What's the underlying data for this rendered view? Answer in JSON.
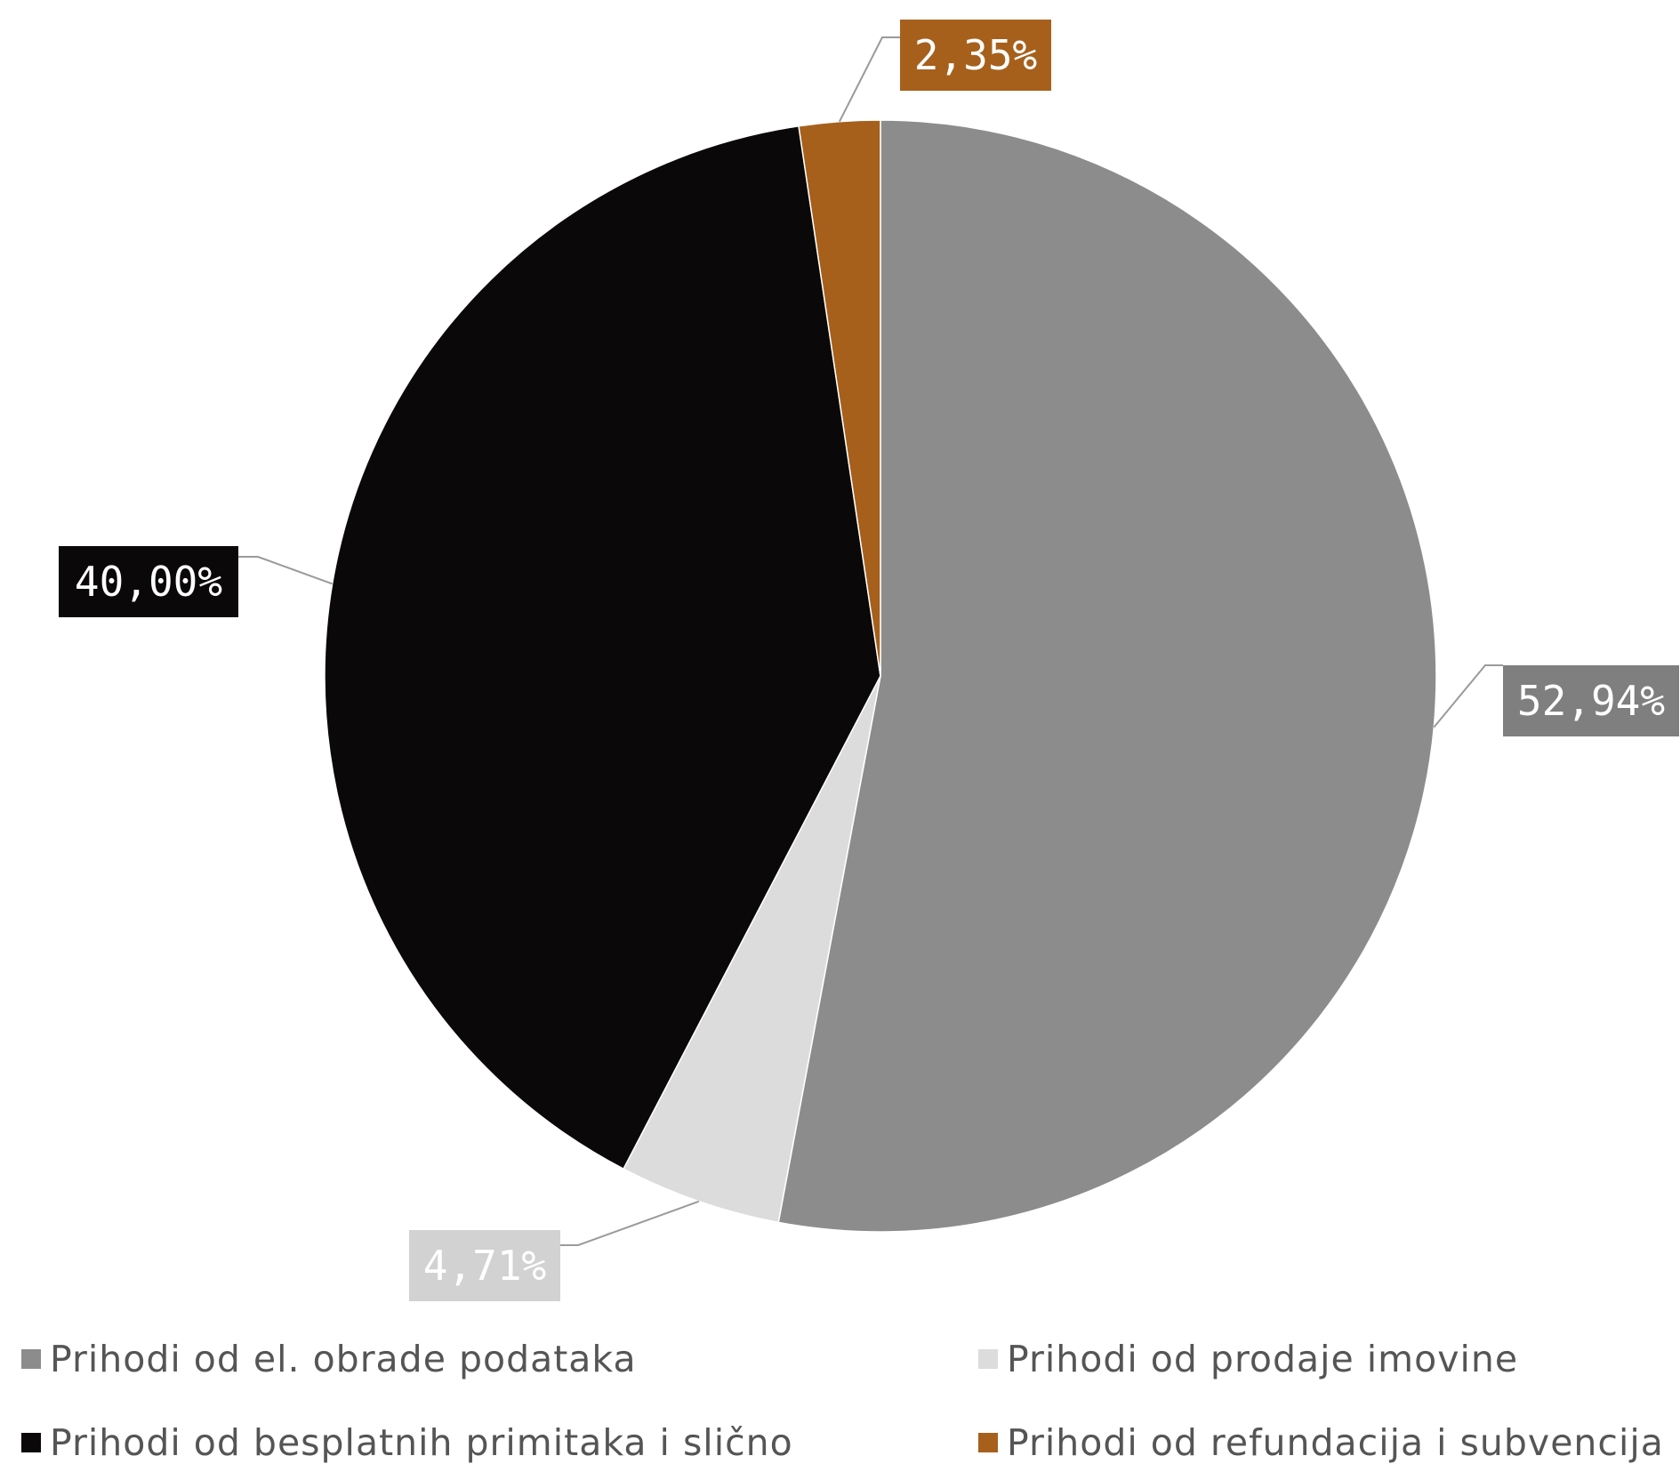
{
  "chart_data": {
    "type": "pie",
    "start_angle_deg": 0,
    "direction": "clockwise",
    "slices": [
      {
        "label": "Prihodi od el. obrade podataka",
        "value": 52.94,
        "value_label": "52,94%",
        "color": "#8c8c8c",
        "label_bg": "#7f7f7f",
        "label_fg": "#ffffff",
        "label_side": "right"
      },
      {
        "label": "Prihodi od prodaje imovine",
        "value": 4.71,
        "value_label": "4,71%",
        "color": "#dcdcdc",
        "label_bg": "#d2d2d2",
        "label_fg": "#ffffff",
        "label_side": "bottom-left"
      },
      {
        "label": "Prihodi od besplatnih primitaka i slično",
        "value": 40.0,
        "value_label": "40,00%",
        "color": "#0a0808",
        "label_bg": "#0a0808",
        "label_fg": "#ffffff",
        "label_side": "left"
      },
      {
        "label": "Prihodi od refundacija i subvencija",
        "value": 2.35,
        "value_label": "2,35%",
        "color": "#a6601c",
        "label_bg": "#a6601c",
        "label_fg": "#ffffff",
        "label_side": "top"
      }
    ],
    "legend": {
      "position": "bottom",
      "columns": 2
    }
  }
}
